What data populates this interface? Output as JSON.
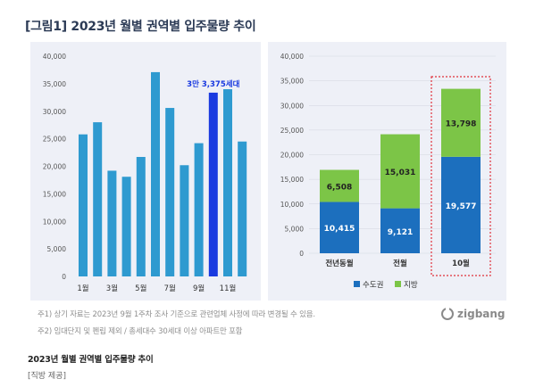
{
  "title": "[그림1]  2023년 월별 권역별 입주물량 추이",
  "notes": [
    "주1) 상기 자료는 2023년 9월 1주차 조사 기준으로 관련업체 사정에 따라 변경될 수 있음.",
    "주2) 임대단지 및 펜립 제외 / 총세대수 30세대 이상 아파트만 포함"
  ],
  "logo": {
    "text": "zigbang"
  },
  "caption": "2023년 월별 권역별 입주물량 추이",
  "source": "[직방 제공]",
  "colors": {
    "bar_blue": "#2e9ad0",
    "bar_highlight": "#1a3ae0",
    "metro": "#1c6fbe",
    "local": "#7cc547",
    "panel_bg": "#eef0f7",
    "highlight_box": "#e0303a"
  },
  "chart_data": [
    {
      "type": "bar",
      "categories": [
        "1월",
        "2월",
        "3월",
        "4월",
        "5월",
        "6월",
        "7월",
        "8월",
        "9월",
        "10월",
        "11월",
        "12월"
      ],
      "tick_labels": [
        "1월",
        "",
        "3월",
        "",
        "5월",
        "",
        "7월",
        "",
        "9월",
        "",
        "11월",
        ""
      ],
      "values": [
        25800,
        28000,
        19200,
        18100,
        21700,
        37100,
        30600,
        20200,
        24200,
        33375,
        34000,
        24500
      ],
      "highlight_index": 9,
      "annotation": "3만 3,375세대",
      "yticks": [
        "0",
        "5,000",
        "10,000",
        "15,000",
        "20,000",
        "25,000",
        "30,000",
        "35,000",
        "40,000"
      ],
      "ylim": [
        0,
        40000
      ]
    },
    {
      "type": "bar",
      "stacked": true,
      "categories": [
        "전년동월",
        "전월",
        "10월"
      ],
      "series": [
        {
          "name": "수도권",
          "values": [
            10415,
            9121,
            19577
          ],
          "labels": [
            "10,415",
            "9,121",
            "19,577"
          ]
        },
        {
          "name": "지방",
          "values": [
            6508,
            15031,
            13798
          ],
          "labels": [
            "6,508",
            "15,031",
            "13,798"
          ]
        }
      ],
      "highlight_index": 2,
      "yticks": [
        "0",
        "5,000",
        "10,000",
        "15,000",
        "20,000",
        "25,000",
        "30,000",
        "35,000",
        "40,000"
      ],
      "ylim": [
        0,
        40000
      ],
      "legend_position": "bottom"
    }
  ]
}
